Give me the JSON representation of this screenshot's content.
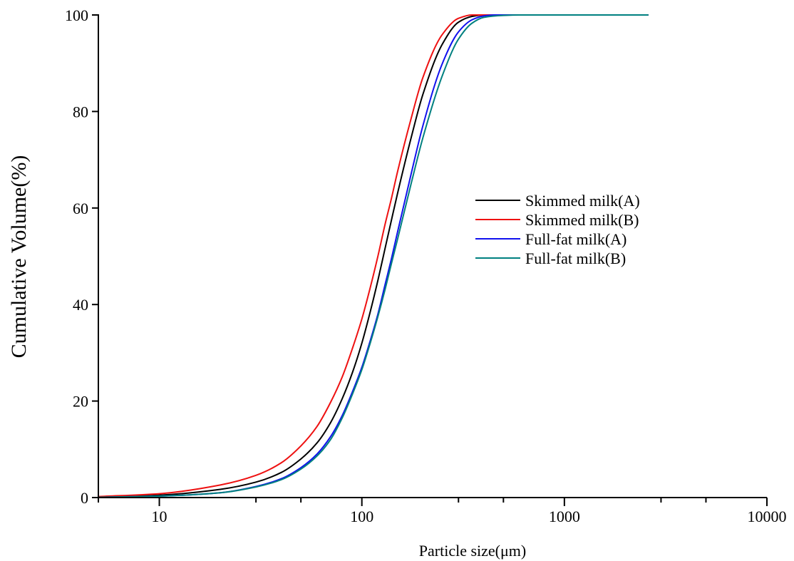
{
  "chart_data": {
    "type": "line",
    "title": "",
    "xlabel": "Particle size(μm)",
    "ylabel": "Cumulative Volume(%)",
    "x_scale": "log",
    "xlim": [
      5,
      10000
    ],
    "ylim": [
      0,
      100
    ],
    "x_ticks": [
      {
        "value": 10,
        "label": "10"
      },
      {
        "value": 100,
        "label": "100"
      },
      {
        "value": 1000,
        "label": "1000"
      },
      {
        "value": 10000,
        "label": "10000"
      }
    ],
    "x_minor_ticks": [
      5,
      30,
      50,
      300,
      500,
      3000,
      5000
    ],
    "y_ticks": [
      {
        "value": 0,
        "label": "0"
      },
      {
        "value": 20,
        "label": "20"
      },
      {
        "value": 40,
        "label": "40"
      },
      {
        "value": 60,
        "label": "60"
      },
      {
        "value": 80,
        "label": "80"
      },
      {
        "value": 100,
        "label": "100"
      }
    ],
    "grid": false,
    "legend_position": "center-right",
    "series": [
      {
        "name": "Skimmed milk(A)",
        "color": "#000000",
        "points": [
          [
            5,
            0.1
          ],
          [
            10,
            0.5
          ],
          [
            20,
            1.7
          ],
          [
            30,
            3.2
          ],
          [
            40,
            5.2
          ],
          [
            50,
            8.0
          ],
          [
            60,
            11.3
          ],
          [
            70,
            15.5
          ],
          [
            80,
            20.5
          ],
          [
            90,
            26.0
          ],
          [
            100,
            32.0
          ],
          [
            110,
            38.5
          ],
          [
            120,
            45.0
          ],
          [
            130,
            51.5
          ],
          [
            140,
            57.5
          ],
          [
            150,
            63.0
          ],
          [
            175,
            74.5
          ],
          [
            200,
            83.5
          ],
          [
            250,
            94.0
          ],
          [
            300,
            98.5
          ],
          [
            350,
            99.7
          ],
          [
            400,
            100
          ],
          [
            500,
            100
          ],
          [
            2600,
            100
          ]
        ]
      },
      {
        "name": "Skimmed milk(B)",
        "color": "#ee1111",
        "points": [
          [
            5,
            0.2
          ],
          [
            10,
            0.8
          ],
          [
            20,
            2.6
          ],
          [
            30,
            4.6
          ],
          [
            40,
            7.2
          ],
          [
            50,
            10.7
          ],
          [
            60,
            14.7
          ],
          [
            70,
            19.7
          ],
          [
            80,
            25.0
          ],
          [
            90,
            31.0
          ],
          [
            100,
            37.0
          ],
          [
            110,
            43.5
          ],
          [
            120,
            50.0
          ],
          [
            130,
            56.5
          ],
          [
            140,
            62.0
          ],
          [
            150,
            67.5
          ],
          [
            175,
            78.5
          ],
          [
            200,
            87.0
          ],
          [
            250,
            96.0
          ],
          [
            300,
            99.3
          ],
          [
            350,
            100
          ],
          [
            2600,
            100
          ]
        ]
      },
      {
        "name": "Full-fat milk(A)",
        "color": "#1111ee",
        "points": [
          [
            5,
            0.05
          ],
          [
            10,
            0.3
          ],
          [
            20,
            1.0
          ],
          [
            30,
            2.3
          ],
          [
            40,
            3.9
          ],
          [
            50,
            6.2
          ],
          [
            60,
            9.0
          ],
          [
            70,
            12.6
          ],
          [
            80,
            17.0
          ],
          [
            90,
            22.0
          ],
          [
            100,
            27.0
          ],
          [
            110,
            32.5
          ],
          [
            120,
            38.0
          ],
          [
            130,
            44.0
          ],
          [
            140,
            49.5
          ],
          [
            150,
            55.0
          ],
          [
            175,
            67.0
          ],
          [
            200,
            77.0
          ],
          [
            250,
            90.0
          ],
          [
            300,
            96.5
          ],
          [
            350,
            99.0
          ],
          [
            400,
            99.8
          ],
          [
            450,
            100
          ],
          [
            2600,
            100
          ]
        ]
      },
      {
        "name": "Full-fat milk(B)",
        "color": "#008080",
        "points": [
          [
            5,
            0.05
          ],
          [
            10,
            0.3
          ],
          [
            20,
            1.0
          ],
          [
            30,
            2.2
          ],
          [
            40,
            3.7
          ],
          [
            50,
            5.9
          ],
          [
            60,
            8.6
          ],
          [
            70,
            12.0
          ],
          [
            80,
            16.5
          ],
          [
            90,
            21.5
          ],
          [
            100,
            26.5
          ],
          [
            110,
            32.0
          ],
          [
            120,
            37.5
          ],
          [
            130,
            43.0
          ],
          [
            140,
            48.5
          ],
          [
            150,
            53.5
          ],
          [
            175,
            65.0
          ],
          [
            200,
            74.5
          ],
          [
            250,
            87.5
          ],
          [
            300,
            95.0
          ],
          [
            350,
            98.3
          ],
          [
            400,
            99.5
          ],
          [
            500,
            99.9
          ],
          [
            600,
            100
          ],
          [
            2600,
            100
          ]
        ]
      }
    ]
  }
}
